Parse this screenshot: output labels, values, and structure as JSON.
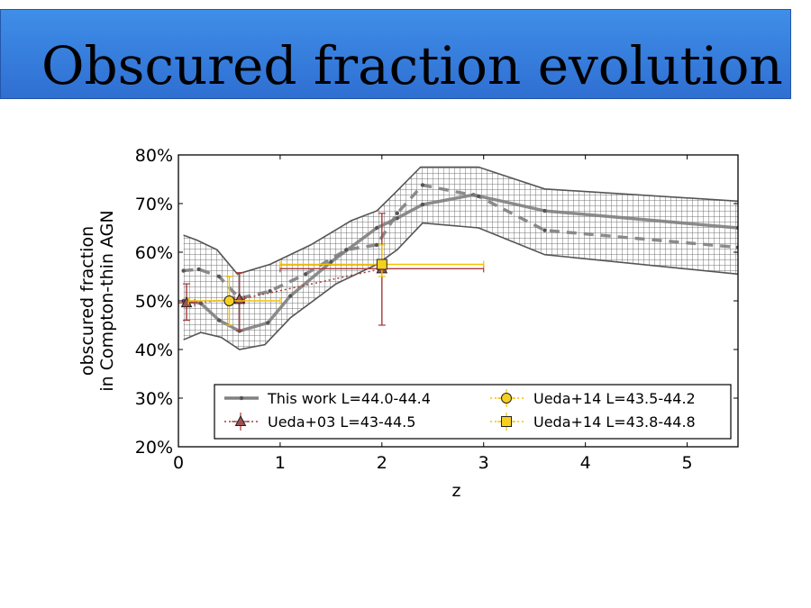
{
  "slide": {
    "title": "Obscured fraction evolution"
  },
  "chart_data": {
    "type": "line",
    "title": "",
    "xlabel": "z",
    "ylabel_lines": [
      "obscured fraction",
      "in Compton-thin AGN"
    ],
    "xlim": [
      0,
      5.5
    ],
    "ylim": [
      20,
      80
    ],
    "xticks": [
      {
        "v": 0,
        "label": "0"
      },
      {
        "v": 1,
        "label": "1"
      },
      {
        "v": 2,
        "label": "2"
      },
      {
        "v": 3,
        "label": "3"
      },
      {
        "v": 4,
        "label": "4"
      },
      {
        "v": 5,
        "label": "5"
      }
    ],
    "yticks": [
      {
        "v": 20,
        "label": "20%"
      },
      {
        "v": 30,
        "label": "30%"
      },
      {
        "v": 40,
        "label": "40%"
      },
      {
        "v": 50,
        "label": "50%"
      },
      {
        "v": 60,
        "label": "60%"
      },
      {
        "v": 70,
        "label": "70%"
      },
      {
        "v": 80,
        "label": "80%"
      }
    ],
    "grid": false,
    "legend_position": "lower-right",
    "colors": {
      "this_work": "#808080",
      "band": "#777777",
      "ueda03": "#a63a3a",
      "ueda14": "#f2c200",
      "marker_fill_ueda03": "#a05050",
      "marker_fill_ueda14": "#f5d020"
    },
    "band_upper": [
      [
        0.05,
        63.5
      ],
      [
        0.18,
        62.5
      ],
      [
        0.38,
        60.5
      ],
      [
        0.58,
        55.5
      ],
      [
        0.9,
        57.5
      ],
      [
        1.3,
        61.5
      ],
      [
        1.7,
        66.5
      ],
      [
        1.95,
        68.5
      ],
      [
        2.12,
        72.0
      ],
      [
        2.38,
        77.5
      ],
      [
        2.95,
        77.5
      ],
      [
        3.6,
        73.0
      ],
      [
        5.5,
        70.5
      ]
    ],
    "band_lower": [
      [
        0.05,
        42.0
      ],
      [
        0.22,
        43.5
      ],
      [
        0.42,
        42.5
      ],
      [
        0.6,
        40.0
      ],
      [
        0.85,
        41.0
      ],
      [
        1.1,
        46.5
      ],
      [
        1.55,
        53.5
      ],
      [
        1.95,
        57.5
      ],
      [
        2.15,
        60.5
      ],
      [
        2.4,
        66.0
      ],
      [
        2.95,
        65.0
      ],
      [
        3.6,
        59.5
      ],
      [
        5.5,
        55.5
      ]
    ],
    "series": [
      {
        "name": "This work L=44.0-44.4",
        "style": "solid",
        "points": [
          [
            0.05,
            50.0
          ],
          [
            0.22,
            49.5
          ],
          [
            0.4,
            46.0
          ],
          [
            0.6,
            43.8
          ],
          [
            0.88,
            45.5
          ],
          [
            1.1,
            51.0
          ],
          [
            1.5,
            58.0
          ],
          [
            1.95,
            65.0
          ],
          [
            2.15,
            67.0
          ],
          [
            2.4,
            69.8
          ],
          [
            2.9,
            71.8
          ],
          [
            3.6,
            68.5
          ],
          [
            5.5,
            65.0
          ]
        ]
      },
      {
        "name": "",
        "style": "dashed",
        "points": [
          [
            0.05,
            56.2
          ],
          [
            0.2,
            56.5
          ],
          [
            0.4,
            55.0
          ],
          [
            0.6,
            50.5
          ],
          [
            0.9,
            52.0
          ],
          [
            1.25,
            55.5
          ],
          [
            1.65,
            60.5
          ],
          [
            1.95,
            61.5
          ],
          [
            2.15,
            68.0
          ],
          [
            2.4,
            73.8
          ],
          [
            2.95,
            71.5
          ],
          [
            3.6,
            64.5
          ],
          [
            5.5,
            61.0
          ]
        ]
      }
    ],
    "error_points": [
      {
        "name": "Ueda+03 L=43-44.5",
        "marker": "triangle",
        "x": 0.08,
        "y": 49.6,
        "xerr": [
          0.08,
          0.08
        ],
        "yerr": [
          3.6,
          3.9
        ]
      },
      {
        "name": "Ueda+03 L=43-44.5",
        "marker": "triangle",
        "x": 0.6,
        "y": 50.3,
        "xerr": [
          0.05,
          0.05
        ],
        "yerr": [
          6.5,
          5.5
        ]
      },
      {
        "name": "Ueda+03 L=43-44.5",
        "marker": "triangle",
        "x": 2.0,
        "y": 56.6,
        "xerr": [
          1.0,
          1.0
        ],
        "yerr": [
          11.6,
          11.4
        ]
      },
      {
        "name": "Ueda+14 L=43.5-44.2",
        "marker": "circle",
        "x": 0.5,
        "y": 50.0,
        "xerr": [
          0.4,
          0.5
        ],
        "yerr": [
          5.0,
          5.0
        ]
      },
      {
        "name": "Ueda+14 L=43.8-44.8",
        "marker": "square",
        "x": 2.0,
        "y": 57.5,
        "xerr": [
          1.0,
          1.0
        ],
        "yerr": [
          2.5,
          4.0
        ]
      }
    ],
    "ueda03_dotted_line": [
      [
        0.08,
        49.6
      ],
      [
        0.6,
        50.3
      ],
      [
        2.0,
        56.6
      ]
    ],
    "legend": [
      {
        "label": "This work L=44.0-44.4",
        "marker": "line"
      },
      {
        "label": "Ueda+03 L=43-44.5",
        "marker": "triangle"
      },
      {
        "label": "Ueda+14 L=43.5-44.2",
        "marker": "circle"
      },
      {
        "label": "Ueda+14 L=43.8-44.8",
        "marker": "square"
      }
    ]
  }
}
